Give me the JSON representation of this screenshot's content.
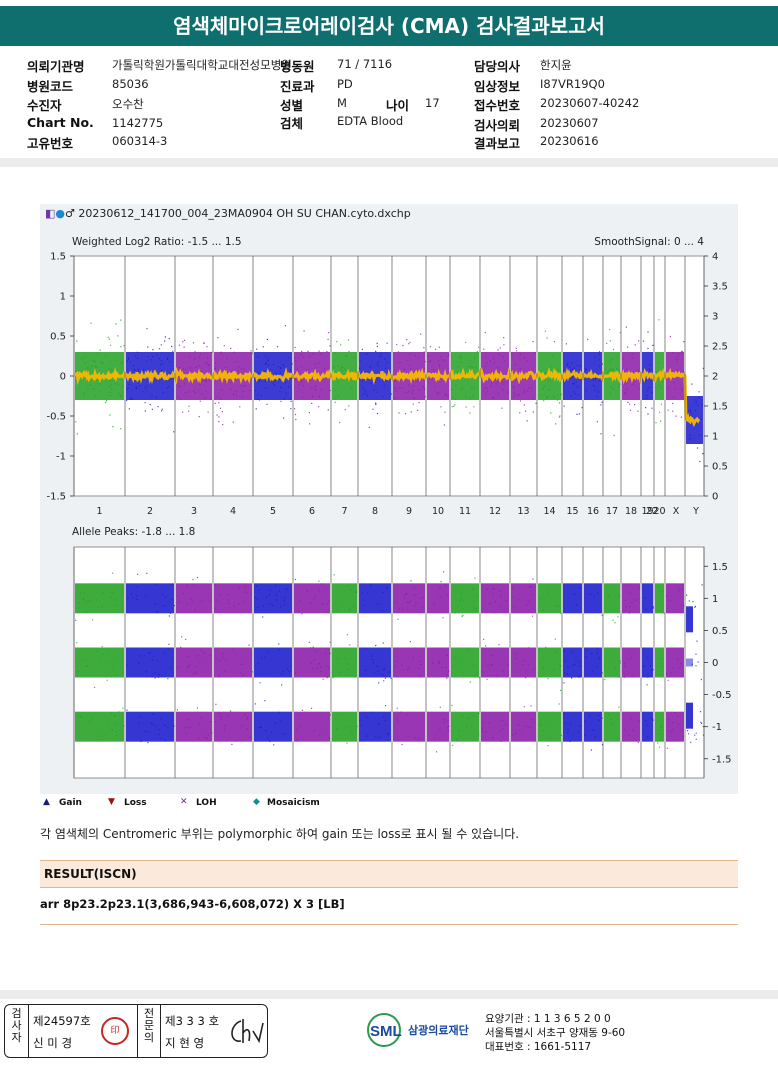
{
  "header": {
    "title": "염색체마이크로어레이검사 (CMA) 검사결과보고서"
  },
  "info": {
    "hospital_label": "의뢰기관명",
    "hospital": "가톨릭학원가톨릭대학교대전성모병원",
    "ward_label": "병동원",
    "ward": "71 / 7116",
    "doctor_label": "담당의사",
    "doctor": "한지윤",
    "code_label": "병원코드",
    "code": "85036",
    "dept_label": "진료과",
    "dept": "PD",
    "clinical_label": "임상정보",
    "clinical": "I87VR19Q0",
    "patient_label": "수진자",
    "patient": "오수찬",
    "sex_label": "성별",
    "sex": "M",
    "age_label": "나이",
    "age": "17",
    "receipt_label": "접수번호",
    "receipt": "20230607-40242",
    "chart_label": "Chart No.",
    "chart": "1142775",
    "specimen_label": "검체",
    "specimen": "EDTA Blood",
    "request_label": "검사의뢰",
    "request": "20230607",
    "uid_label": "고유번호",
    "uid": "060314-3",
    "report_label": "결과보고",
    "report": "20230616"
  },
  "plot": {
    "filename": "20230612_141700_004_23MA0904 OH SU CHAN.cyto.dxchp",
    "top_title": "Weighted Log2 Ratio: -1.5 ... 1.5",
    "top_right": "SmoothSignal: 0 ... 4",
    "bottom_title": "Allele Peaks: -1.8 ... 1.8",
    "top_left_ticks": [
      "1.5",
      "1",
      "0.5",
      "0",
      "-0.5",
      "-1",
      "-1.5"
    ],
    "top_right_ticks": [
      "4",
      "3.5",
      "3",
      "2.5",
      "2",
      "1.5",
      "1",
      "0.5",
      "0"
    ],
    "bottom_right_ticks": [
      "1.5",
      "1",
      "0.5",
      "0",
      "-0.5",
      "-1",
      "-1.5"
    ],
    "chromosomes": [
      "1",
      "2",
      "3",
      "4",
      "5",
      "6",
      "7",
      "8",
      "9",
      "10",
      "11",
      "12",
      "13",
      "14",
      "15",
      "16",
      "17",
      "18",
      "19",
      "20",
      "22",
      "X",
      "Y"
    ]
  },
  "legend": {
    "gain": "Gain",
    "loss": "Loss",
    "loh": "LOH",
    "mosaicism": "Mosaicism"
  },
  "note": "각 염색체의 Centromeric 부위는 polymorphic 하여 gain 또는 loss로 표시 될 수 있습니다.",
  "result": {
    "header": "RESULT(ISCN)",
    "value": "arr 8p23.2p23.1(3,686,943-6,608,072) X 3 [LB]"
  },
  "signatures": {
    "examiner_label": "검사자",
    "examiner_no": "제24597호",
    "examiner_name": "신 미 경",
    "specialist_label": "전문의",
    "specialist_no": "제3 3 3 호",
    "specialist_name": "지 현 영"
  },
  "footer": {
    "org": "삼광의료재단",
    "logo": "SML",
    "code": "요양기관 : 1 1 3 6 5 2 0 0",
    "address": "서울특별시 서초구 양재동 9-60",
    "phone": "대표번호 : 1661-5117"
  },
  "colors": {
    "header": "#0f6f6f",
    "green": "#22a022",
    "blue": "#1a1acc",
    "purple": "#8a1aa8",
    "yellow": "#f5b800",
    "result_bg": "#fbe9dc"
  }
}
